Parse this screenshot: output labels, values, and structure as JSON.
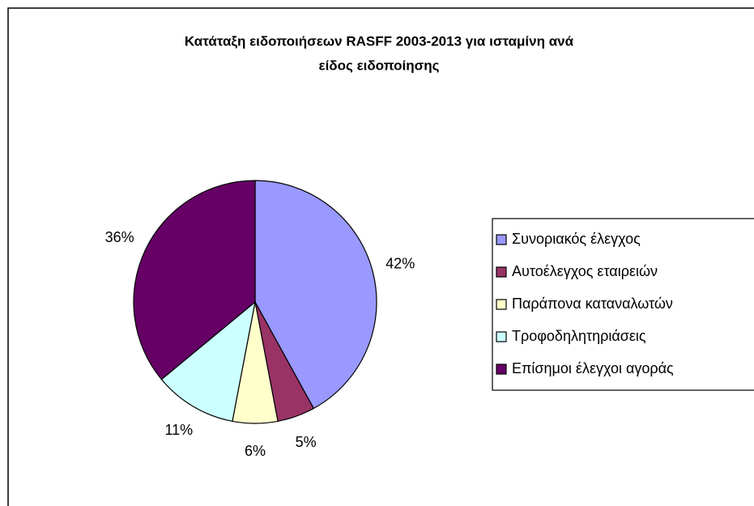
{
  "chart_data": {
    "type": "pie",
    "title": [
      "Κατάταξη ειδοποιήσεων RASFF 2003-2013 για ισταμίνη ανά",
      "είδος ειδοποίησης"
    ],
    "categories": [
      "Συνοριακός έλεγχος",
      "Αυτοέλεγχος εταιρειών",
      "Παράπονα καταναλωτών",
      "Τροφοδηλητηριάσεις",
      "Επίσημοι έλεγχοι αγοράς"
    ],
    "values": [
      42,
      5,
      6,
      11,
      36
    ],
    "value_labels": [
      "42%",
      "5%",
      "6%",
      "11%",
      "36%"
    ],
    "colors": [
      "#9999ff",
      "#993366",
      "#ffffcc",
      "#ccffff",
      "#660066"
    ],
    "legend": "right"
  }
}
